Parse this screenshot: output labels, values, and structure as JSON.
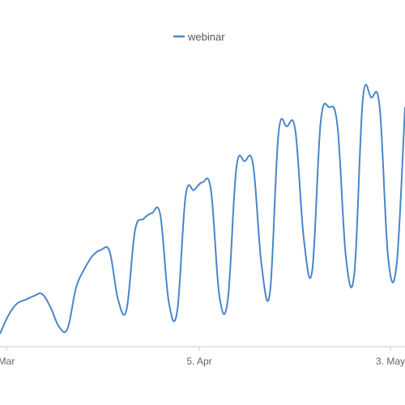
{
  "chart_data": {
    "type": "line",
    "title": "",
    "xlabel": "",
    "ylabel": "",
    "legend_position": "top-center",
    "grid": false,
    "x_tick_labels": [
      "Mar",
      "5. Apr",
      "3. May"
    ],
    "series": [
      {
        "name": "webinar",
        "color": "#4a86c8",
        "points": [
          [
            0,
            0.2
          ],
          [
            1,
            5
          ],
          [
            2,
            8
          ],
          [
            3,
            9
          ],
          [
            4,
            10
          ],
          [
            5,
            10.5
          ],
          [
            6,
            7
          ],
          [
            7,
            2
          ],
          [
            8,
            1.5
          ],
          [
            9,
            12
          ],
          [
            10,
            17
          ],
          [
            11,
            20.5
          ],
          [
            12,
            22
          ],
          [
            13,
            21.5
          ],
          [
            14,
            9
          ],
          [
            15,
            6.5
          ],
          [
            16,
            27
          ],
          [
            17,
            30
          ],
          [
            18,
            31.5
          ],
          [
            19,
            31
          ],
          [
            20,
            8.5
          ],
          [
            21,
            6
          ],
          [
            22,
            36
          ],
          [
            23,
            37.5
          ],
          [
            24,
            39.5
          ],
          [
            25,
            37.5
          ],
          [
            26,
            10
          ],
          [
            27,
            9
          ],
          [
            28,
            43
          ],
          [
            29,
            45
          ],
          [
            30,
            44
          ],
          [
            31,
            18
          ],
          [
            32,
            11
          ],
          [
            33,
            52
          ],
          [
            34,
            54
          ],
          [
            35,
            53
          ],
          [
            36,
            25
          ],
          [
            37,
            16.5
          ],
          [
            38,
            55
          ],
          [
            39,
            59
          ],
          [
            40,
            54
          ],
          [
            41,
            20
          ],
          [
            42,
            16
          ],
          [
            43,
            61
          ],
          [
            44,
            61.5
          ],
          [
            45,
            59
          ],
          [
            46,
            20
          ],
          [
            47,
            18
          ],
          [
            48,
            59
          ]
        ]
      }
    ],
    "ylim": [
      0,
      70
    ],
    "xlim": [
      0,
      48
    ],
    "x_tick_positions": [
      0,
      24,
      48
    ]
  }
}
